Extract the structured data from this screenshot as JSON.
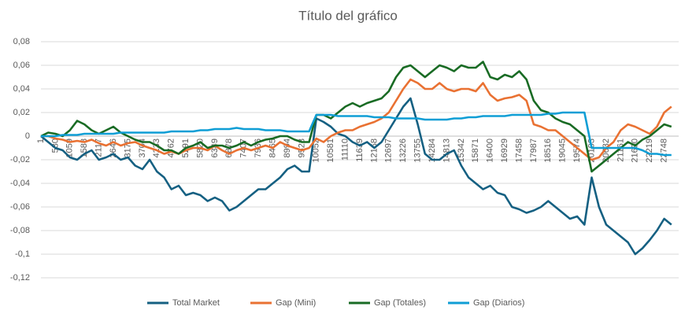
{
  "chart_data": {
    "type": "line",
    "title": "Título del gráfico",
    "categories": [
      "1",
      null,
      "530",
      null,
      "1059",
      null,
      "1588",
      null,
      "2117",
      null,
      "2646",
      null,
      "3175",
      null,
      "3704",
      null,
      "4233",
      null,
      "4762",
      null,
      "5291",
      null,
      "5820",
      null,
      "6349",
      null,
      "6878",
      null,
      "7407",
      null,
      "7936",
      null,
      "8465",
      null,
      "8994",
      null,
      "9523",
      null,
      "10052",
      null,
      "10581",
      null,
      "11110",
      null,
      "11639",
      null,
      "12168",
      null,
      "12697",
      null,
      "13226",
      null,
      "13755",
      null,
      "14284",
      null,
      "14813",
      null,
      "15342",
      null,
      "15871",
      null,
      "16400",
      null,
      "16929",
      null,
      "17458",
      null,
      "17987",
      null,
      "18516",
      null,
      "19045",
      null,
      "19574",
      null,
      "20103",
      null,
      "20632",
      null,
      "21161",
      null,
      "21690",
      null,
      "22219",
      null,
      "22748",
      null
    ],
    "series": [
      {
        "name": "Total Market",
        "color": "#156082",
        "values": [
          0,
          -0.005,
          -0.01,
          -0.012,
          -0.018,
          -0.02,
          -0.015,
          -0.012,
          -0.02,
          -0.018,
          -0.015,
          -0.02,
          -0.018,
          -0.025,
          -0.028,
          -0.02,
          -0.03,
          -0.035,
          -0.045,
          -0.042,
          -0.05,
          -0.048,
          -0.05,
          -0.055,
          -0.052,
          -0.055,
          -0.063,
          -0.06,
          -0.055,
          -0.05,
          -0.045,
          -0.045,
          -0.04,
          -0.035,
          -0.028,
          -0.025,
          -0.03,
          -0.03,
          0.015,
          0.012,
          0.008,
          0.002,
          0,
          -0.005,
          -0.008,
          -0.005,
          -0.01,
          -0.005,
          0.005,
          0.015,
          0.025,
          0.032,
          0.01,
          -0.015,
          -0.02,
          -0.02,
          -0.015,
          -0.012,
          -0.025,
          -0.035,
          -0.04,
          -0.045,
          -0.042,
          -0.048,
          -0.05,
          -0.06,
          -0.062,
          -0.065,
          -0.063,
          -0.06,
          -0.055,
          -0.06,
          -0.065,
          -0.07,
          -0.068,
          -0.075,
          -0.035,
          -0.06,
          -0.075,
          -0.08,
          -0.085,
          -0.09,
          -0.1,
          -0.095,
          -0.088,
          -0.08,
          -0.07,
          -0.075
        ]
      },
      {
        "name": "Gap (Mini)",
        "color": "#e97132",
        "values": [
          0,
          0,
          -0.002,
          -0.003,
          -0.005,
          -0.004,
          -0.005,
          -0.003,
          -0.006,
          -0.008,
          -0.005,
          -0.008,
          -0.006,
          -0.005,
          -0.008,
          -0.01,
          -0.012,
          -0.015,
          -0.013,
          -0.015,
          -0.012,
          -0.01,
          -0.01,
          -0.012,
          -0.008,
          -0.012,
          -0.015,
          -0.012,
          -0.01,
          -0.012,
          -0.01,
          -0.008,
          -0.01,
          -0.005,
          -0.008,
          -0.01,
          -0.012,
          -0.01,
          -0.002,
          -0.005,
          0,
          0.003,
          0.005,
          0.005,
          0.008,
          0.01,
          0.012,
          0.015,
          0.02,
          0.03,
          0.04,
          0.048,
          0.045,
          0.04,
          0.04,
          0.045,
          0.04,
          0.038,
          0.04,
          0.04,
          0.038,
          0.045,
          0.035,
          0.03,
          0.032,
          0.033,
          0.035,
          0.03,
          0.01,
          0.008,
          0.005,
          0.005,
          0,
          -0.005,
          -0.01,
          -0.015,
          -0.02,
          -0.018,
          -0.01,
          -0.005,
          0.005,
          0.01,
          0.008,
          0.005,
          0.002,
          0.008,
          0.02,
          0.025
        ]
      },
      {
        "name": "Gap (Totales)",
        "color": "#196b24",
        "values": [
          0,
          0.003,
          0.002,
          0,
          0.005,
          0.013,
          0.01,
          0.005,
          0.002,
          0.005,
          0.008,
          0.003,
          0,
          -0.003,
          -0.005,
          -0.005,
          -0.008,
          -0.012,
          -0.012,
          -0.015,
          -0.01,
          -0.008,
          -0.005,
          -0.01,
          -0.008,
          -0.008,
          -0.01,
          -0.008,
          -0.005,
          -0.008,
          -0.005,
          -0.003,
          -0.002,
          0,
          0,
          -0.003,
          -0.005,
          -0.005,
          0.018,
          0.018,
          0.015,
          0.02,
          0.025,
          0.028,
          0.025,
          0.028,
          0.03,
          0.032,
          0.038,
          0.05,
          0.058,
          0.06,
          0.055,
          0.05,
          0.055,
          0.06,
          0.058,
          0.055,
          0.06,
          0.058,
          0.058,
          0.063,
          0.05,
          0.048,
          0.052,
          0.05,
          0.055,
          0.048,
          0.03,
          0.022,
          0.02,
          0.015,
          0.012,
          0.01,
          0.005,
          0,
          -0.03,
          -0.025,
          -0.02,
          -0.015,
          -0.01,
          -0.005,
          -0.008,
          -0.003,
          0,
          0.005,
          0.01,
          0.008
        ]
      },
      {
        "name": "Gap (Diarios)",
        "color": "#0f9ed5",
        "values": [
          0,
          0,
          0,
          0.001,
          0.001,
          0.001,
          0.002,
          0.002,
          0.002,
          0.002,
          0.002,
          0.003,
          0.003,
          0.003,
          0.003,
          0.003,
          0.003,
          0.003,
          0.004,
          0.004,
          0.004,
          0.004,
          0.005,
          0.005,
          0.006,
          0.006,
          0.006,
          0.007,
          0.006,
          0.006,
          0.006,
          0.005,
          0.005,
          0.005,
          0.004,
          0.004,
          0.004,
          0.004,
          0.018,
          0.018,
          0.018,
          0.017,
          0.017,
          0.017,
          0.017,
          0.017,
          0.016,
          0.016,
          0.016,
          0.015,
          0.015,
          0.015,
          0.015,
          0.014,
          0.014,
          0.014,
          0.014,
          0.015,
          0.015,
          0.016,
          0.016,
          0.017,
          0.017,
          0.017,
          0.017,
          0.018,
          0.018,
          0.018,
          0.018,
          0.018,
          0.019,
          0.019,
          0.02,
          0.02,
          0.02,
          0.02,
          -0.01,
          -0.01,
          -0.01,
          -0.01,
          -0.01,
          -0.01,
          -0.01,
          -0.012,
          -0.015,
          -0.015,
          -0.016,
          -0.016
        ]
      }
    ],
    "ylim": [
      -0.12,
      0.08
    ],
    "yticks": [
      {
        "value": -0.12,
        "label": "-0,12"
      },
      {
        "value": -0.1,
        "label": "-0,1"
      },
      {
        "value": -0.08,
        "label": "-0,08"
      },
      {
        "value": -0.06,
        "label": "-0,06"
      },
      {
        "value": -0.04,
        "label": "-0,04"
      },
      {
        "value": -0.02,
        "label": "-0,02"
      },
      0,
      {
        "value": 0.02,
        "label": "0,02"
      },
      {
        "value": 0.04,
        "label": "0,04"
      },
      {
        "value": 0.06,
        "label": "0,06"
      },
      {
        "value": 0.08,
        "label": "0,08"
      }
    ],
    "grid": true,
    "legend": "bottom"
  }
}
